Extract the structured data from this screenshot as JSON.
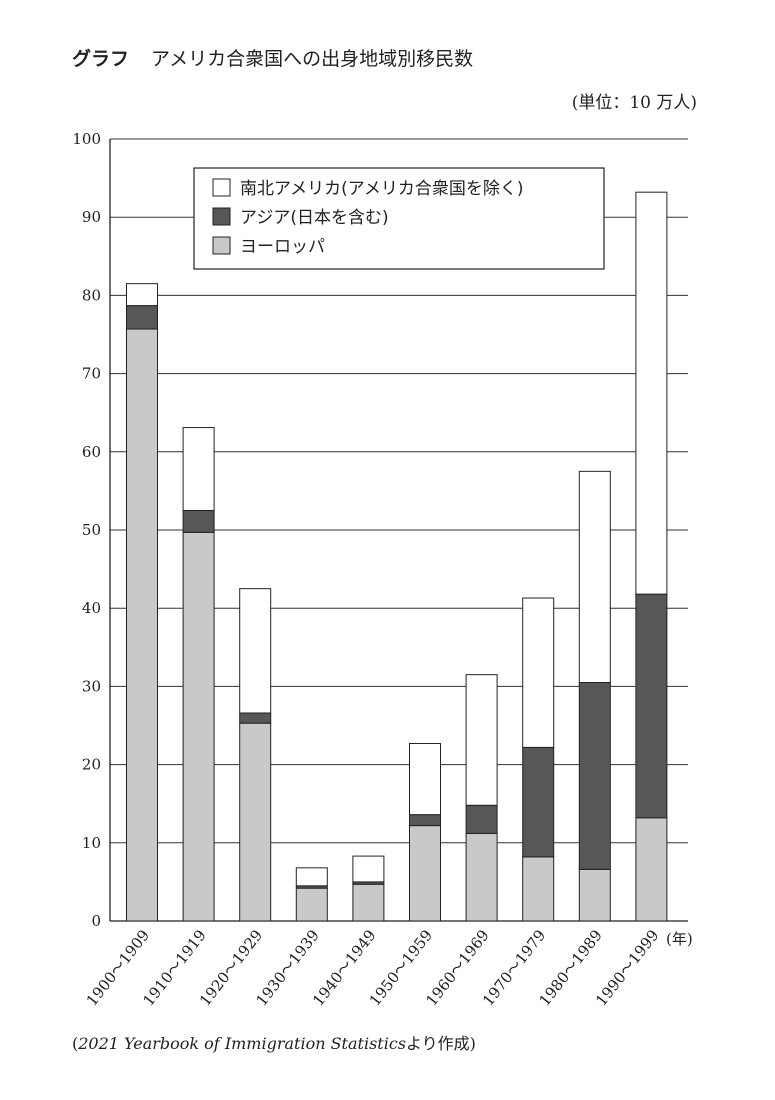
{
  "header": {
    "label": "グラフ",
    "title": "アメリカ合衆国への出身地域別移民数",
    "unit": "(単位：10 万人)"
  },
  "source": {
    "prefix": "(",
    "english": "2021 Yearbook of Immigration Statistics",
    "suffix": "より作成)"
  },
  "chart_data": {
    "type": "bar",
    "stacked": true,
    "categories": [
      "1900～1909",
      "1910～1919",
      "1920～1929",
      "1930～1939",
      "1940～1949",
      "1950～1959",
      "1960～1969",
      "1970～1979",
      "1980～1989",
      "1990～1999"
    ],
    "x_unit": "(年)",
    "ylim": [
      0,
      100
    ],
    "yticks": [
      0,
      10,
      20,
      30,
      40,
      50,
      60,
      70,
      80,
      90,
      100
    ],
    "grid": true,
    "legend_position": "top-center",
    "series": [
      {
        "name": "ヨーロッパ",
        "color": "#c8c9ca",
        "values": [
          75.7,
          49.7,
          25.3,
          4.2,
          4.7,
          12.2,
          11.2,
          8.2,
          6.6,
          13.2
        ]
      },
      {
        "name": "アジア(日本を含む)",
        "color": "#575757",
        "values": [
          3.0,
          2.8,
          1.3,
          0.3,
          0.3,
          1.4,
          3.6,
          14.0,
          23.9,
          28.6
        ]
      },
      {
        "name": "南北アメリカ(アメリカ合衆国を除く)",
        "color": "#ffffff",
        "values": [
          2.8,
          10.6,
          15.9,
          2.3,
          3.3,
          9.1,
          16.7,
          19.1,
          27.0,
          51.4
        ]
      }
    ],
    "legend_order": [
      2,
      1,
      0
    ]
  }
}
